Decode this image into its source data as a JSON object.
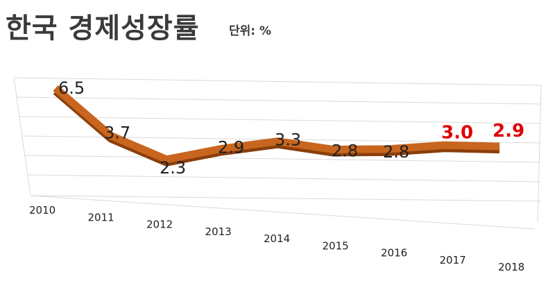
{
  "chart_data": {
    "type": "line",
    "title": "한국 경제성장률",
    "unit_label": "단위: %",
    "categories": [
      "2010",
      "2011",
      "2012",
      "2013",
      "2014",
      "2015",
      "2016",
      "2017",
      "2018"
    ],
    "series": [
      {
        "values": [
          6.5,
          3.7,
          2.3,
          2.9,
          3.3,
          2.8,
          2.8,
          3.0,
          2.9
        ]
      }
    ],
    "highlighted": [
      "2017",
      "2018"
    ],
    "colors": {
      "line": "#c8651e",
      "line_dark": "#8a3f0c",
      "highlight_label": "#e00000",
      "grid": "#d9d9d9"
    },
    "grid": true,
    "legend": false
  }
}
